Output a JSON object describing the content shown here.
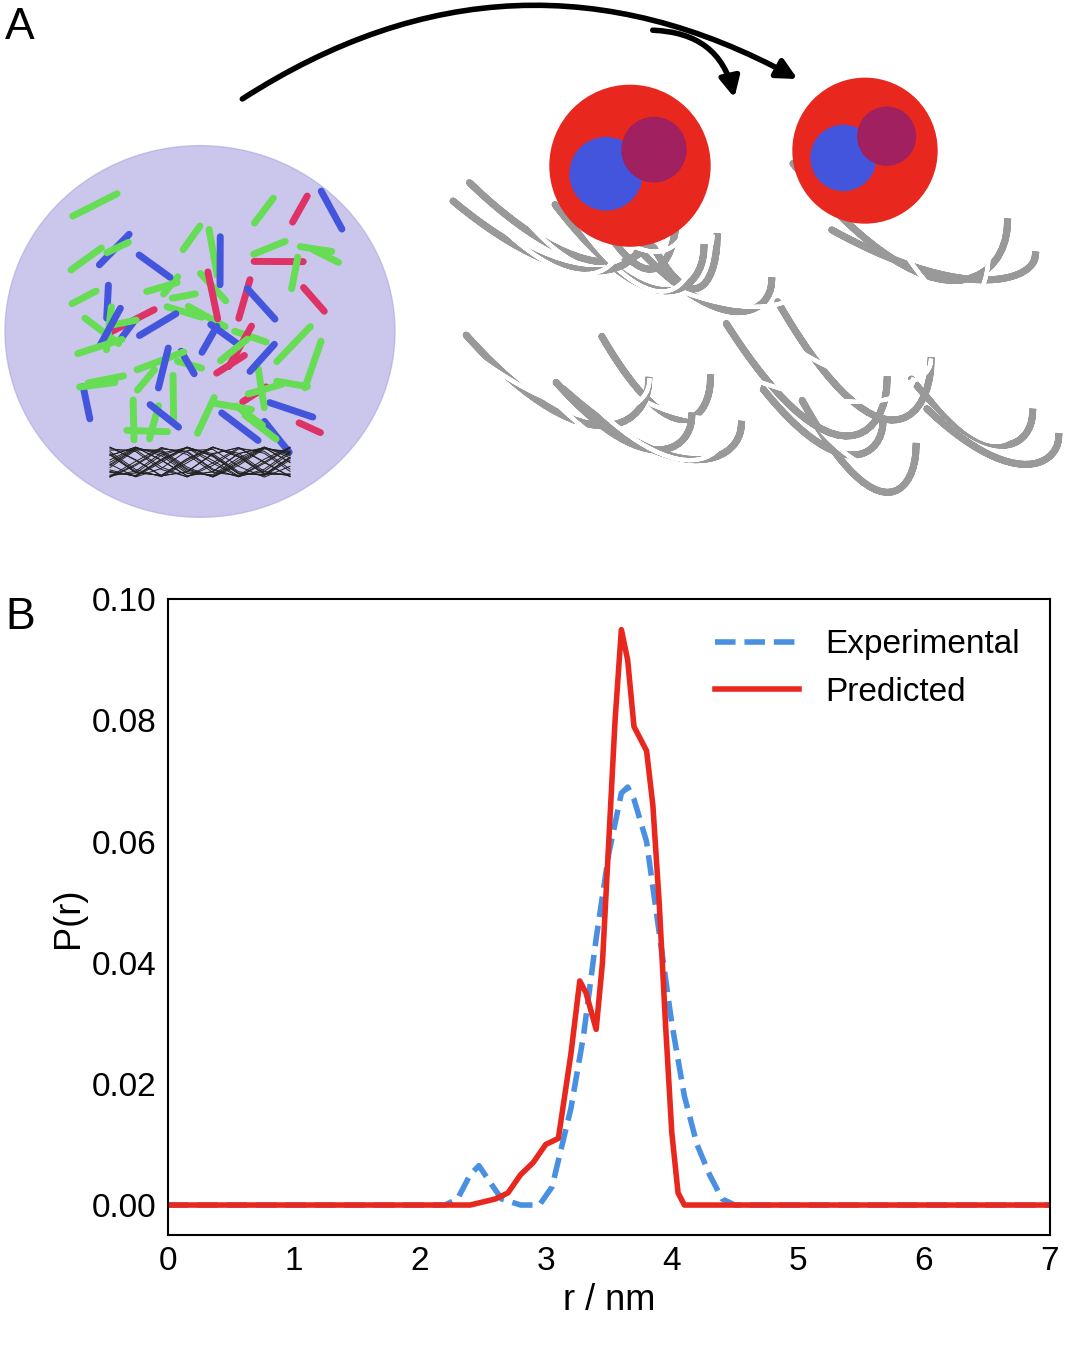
{
  "panels": [
    "A",
    "B"
  ],
  "chart_data": {
    "type": "line",
    "xlabel": "r / nm",
    "ylabel": "P(r)",
    "xlim": [
      0,
      7
    ],
    "xticks": [
      0,
      1,
      2,
      3,
      4,
      5,
      6,
      7
    ],
    "ylim": [
      -0.005,
      0.1
    ],
    "yticks": [
      {
        "value": 0,
        "label": "0.00"
      },
      {
        "value": 0.02,
        "label": "0.02"
      },
      {
        "value": 0.04,
        "label": "0.04"
      },
      {
        "value": 0.06,
        "label": "0.06"
      },
      {
        "value": 0.08,
        "label": "0.08"
      },
      {
        "value": 0.1,
        "label": "0.10"
      }
    ],
    "legend": "upper right",
    "series": [
      {
        "name": "Experimental",
        "color": "#4a90e2",
        "line_style": "dashed",
        "x": [
          0,
          2.2,
          2.3,
          2.4,
          2.47,
          2.55,
          2.65,
          2.8,
          2.95,
          3.05,
          3.2,
          3.3,
          3.4,
          3.5,
          3.6,
          3.65,
          3.7,
          3.8,
          3.9,
          4.0,
          4.1,
          4.2,
          4.3,
          4.4,
          4.5,
          7
        ],
        "values": [
          0,
          0,
          0.001,
          0.005,
          0.0065,
          0.004,
          0.001,
          0.0,
          0.0,
          0.003,
          0.016,
          0.028,
          0.044,
          0.058,
          0.068,
          0.069,
          0.067,
          0.06,
          0.045,
          0.03,
          0.018,
          0.01,
          0.005,
          0.001,
          0.0,
          0
        ]
      },
      {
        "name": "Predicted",
        "color": "#e8281e",
        "line_style": "solid",
        "x": [
          0,
          2.4,
          2.6,
          2.7,
          2.8,
          2.9,
          3.0,
          3.1,
          3.2,
          3.27,
          3.32,
          3.4,
          3.45,
          3.5,
          3.55,
          3.6,
          3.65,
          3.7,
          3.75,
          3.8,
          3.85,
          3.9,
          3.95,
          4.0,
          4.05,
          4.1,
          7
        ],
        "values": [
          0,
          0,
          0.001,
          0.002,
          0.005,
          0.007,
          0.01,
          0.011,
          0.025,
          0.037,
          0.035,
          0.029,
          0.04,
          0.06,
          0.08,
          0.095,
          0.09,
          0.079,
          0.077,
          0.075,
          0.066,
          0.05,
          0.03,
          0.012,
          0.002,
          0.0,
          0
        ]
      }
    ]
  }
}
